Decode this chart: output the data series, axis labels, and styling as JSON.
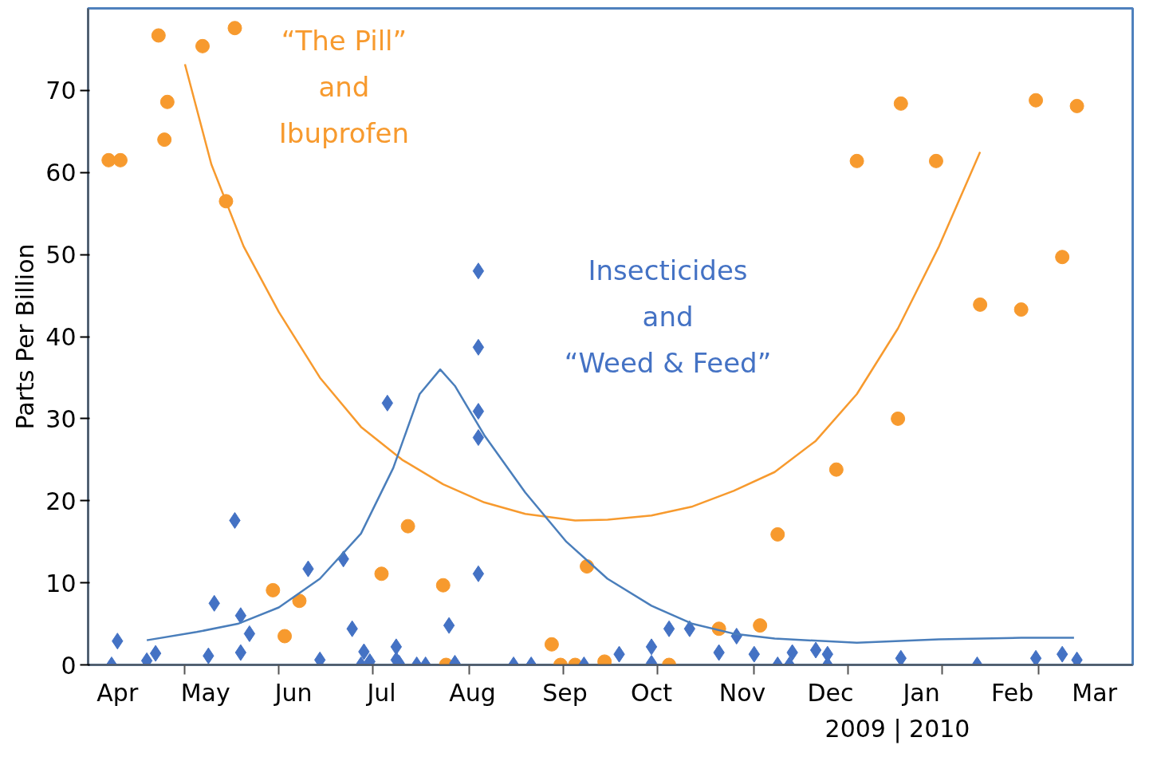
{
  "chart_data": {
    "type": "scatter",
    "ylabel": "Parts Per Billion",
    "xlim": [
      "2009-04-06",
      "2010-03-28"
    ],
    "ylim": [
      0,
      80
    ],
    "xticks": [
      {
        "value": "2009-04-16",
        "label": "Apr"
      },
      {
        "value": "2009-05-09",
        "label": null
      },
      {
        "value": "2009-05-16",
        "label": "May"
      },
      {
        "value": "2009-06-10",
        "label": null
      },
      {
        "value": "2009-06-15",
        "label": "Jun"
      },
      {
        "value": "2009-07-12",
        "label": null
      },
      {
        "value": "2009-07-15",
        "label": "Jul"
      },
      {
        "value": "2009-08-14",
        "label": null
      },
      {
        "value": "2009-08-15",
        "label": "Aug"
      },
      {
        "value": "2009-09-15",
        "label": null
      },
      {
        "value": "2009-09-15T12:00",
        "label": "Sep"
      },
      {
        "value": "2009-10-15",
        "label": "Oct"
      },
      {
        "value": "2009-10-17",
        "label": null
      },
      {
        "value": "2009-11-15",
        "label": "Nov"
      },
      {
        "value": "2009-11-19",
        "label": null
      },
      {
        "value": "2009-12-15",
        "label": "Dec"
      },
      {
        "value": "2009-12-21",
        "label": null
      },
      {
        "value": "2010-01-15",
        "label": "Jan"
      },
      {
        "value": "2010-01-22",
        "label": null
      },
      {
        "value": "2010-02-15",
        "label": "Feb"
      },
      {
        "value": "2010-02-24",
        "label": null
      },
      {
        "value": "2010-03-15",
        "label": "Mar"
      }
    ],
    "yticks": [
      0,
      10,
      20,
      30,
      40,
      50,
      60,
      70
    ],
    "grid": false,
    "annotations": [
      "2009  |  2010"
    ],
    "series": [
      {
        "name": "“The Pill”\nand\nIbuprofen",
        "marker": "circle",
        "color": "#f79a2e",
        "x": [
          "2009-04-13",
          "2009-04-17",
          "2009-04-30",
          "2009-05-02",
          "2009-05-03",
          "2009-05-15",
          "2009-05-23",
          "2009-05-26",
          "2009-06-08",
          "2009-06-12",
          "2009-06-17",
          "2009-07-15",
          "2009-07-24",
          "2009-08-05",
          "2009-08-06",
          "2009-09-11",
          "2009-09-14",
          "2009-09-19",
          "2009-09-23",
          "2009-09-29",
          "2009-10-21",
          "2009-11-07",
          "2009-11-21",
          "2009-11-27",
          "2009-12-17",
          "2009-12-24",
          "2010-01-07",
          "2010-01-08",
          "2010-01-20",
          "2010-02-04",
          "2010-02-18",
          "2010-02-23",
          "2010-03-04",
          "2010-03-09"
        ],
        "values": [
          61.5,
          61.5,
          76.7,
          64,
          68.6,
          75.4,
          56.5,
          77.6,
          9.1,
          3.5,
          7.8,
          11.1,
          16.9,
          9.7,
          0,
          2.5,
          0,
          0,
          12,
          0.4,
          0,
          4.4,
          4.8,
          15.9,
          23.8,
          61.4,
          30,
          68.4,
          61.4,
          43.9,
          43.3,
          68.8,
          49.7,
          68.1
        ]
      },
      {
        "name": "Insecticides\nand\n“Weed & Feed”",
        "marker": "diamond",
        "color": "#4472c4",
        "x": [
          "2009-04-16",
          "2009-04-14",
          "2009-04-26",
          "2009-04-29",
          "2009-05-17",
          "2009-05-19",
          "2009-05-26",
          "2009-05-28",
          "2009-05-28",
          "2009-05-31",
          "2009-06-20",
          "2009-06-24",
          "2009-07-02",
          "2009-07-05",
          "2009-07-09",
          "2009-07-08",
          "2009-07-11",
          "2009-07-17",
          "2009-07-20",
          "2009-07-20",
          "2009-07-21",
          "2009-07-27",
          "2009-07-30",
          "2009-08-07",
          "2009-08-09",
          "2009-08-17",
          "2009-08-17",
          "2009-08-17",
          "2009-08-17",
          "2009-08-17",
          "2009-08-29",
          "2009-09-04",
          "2009-09-22",
          "2009-10-04",
          "2009-10-15",
          "2009-10-15",
          "2009-10-21",
          "2009-10-28",
          "2009-11-07",
          "2009-11-13",
          "2009-11-19",
          "2009-11-27",
          "2009-12-01",
          "2009-12-02",
          "2009-12-10",
          "2009-12-14",
          "2009-12-14",
          "2010-01-08",
          "2010-02-03",
          "2010-02-23",
          "2010-03-04",
          "2010-03-09"
        ],
        "values": [
          2.9,
          0,
          0.5,
          1.4,
          1.1,
          7.5,
          17.6,
          6,
          1.5,
          3.8,
          11.7,
          0.6,
          12.9,
          4.4,
          1.6,
          0,
          0.4,
          31.9,
          2.2,
          0.6,
          0.2,
          0,
          0,
          4.8,
          0.2,
          48,
          38.7,
          30.9,
          27.7,
          11.1,
          0,
          0,
          0,
          1.3,
          2.2,
          0.2,
          4.4,
          4.4,
          1.5,
          3.5,
          1.3,
          0,
          0,
          1.5,
          1.8,
          1.3,
          0,
          0.8,
          0,
          0.8,
          1.3,
          0.6
        ]
      },
      {
        "type": "line",
        "line_style": "solid",
        "color": "#f79a2e",
        "x": [
          "2009-05-09",
          "2009-05-18",
          "2009-05-29",
          "2009-06-10",
          "2009-06-24",
          "2009-07-08",
          "2009-07-22",
          "2009-08-05",
          "2009-08-19",
          "2009-09-02",
          "2009-09-19",
          "2009-09-30",
          "2009-10-15",
          "2009-10-29",
          "2009-11-12",
          "2009-11-26",
          "2009-12-10",
          "2009-12-24",
          "2010-01-07",
          "2010-01-21",
          "2010-02-04"
        ],
        "values": [
          73.2,
          61,
          51,
          43,
          35,
          29,
          25,
          22,
          19.8,
          18.4,
          17.6,
          17.7,
          18.2,
          19.3,
          21.2,
          23.5,
          27.3,
          33,
          41,
          51,
          62.5
        ]
      },
      {
        "type": "line",
        "line_style": "solid",
        "color": "#4a7ebb",
        "x": [
          "2009-04-26",
          "2009-05-13",
          "2009-05-27",
          "2009-06-10",
          "2009-06-24",
          "2009-07-08",
          "2009-07-19",
          "2009-07-28",
          "2009-08-04",
          "2009-08-09",
          "2009-08-19",
          "2009-09-02",
          "2009-09-16",
          "2009-09-30",
          "2009-10-15",
          "2009-10-29",
          "2009-11-12",
          "2009-11-26",
          "2009-12-24",
          "2010-01-21",
          "2010-02-18",
          "2010-03-08"
        ],
        "values": [
          3,
          4,
          5,
          7,
          10.5,
          16,
          24,
          33,
          36,
          34,
          28,
          21,
          15,
          10.5,
          7.2,
          5,
          3.8,
          3.2,
          2.7,
          3.1,
          3.3,
          3.3
        ]
      }
    ]
  }
}
